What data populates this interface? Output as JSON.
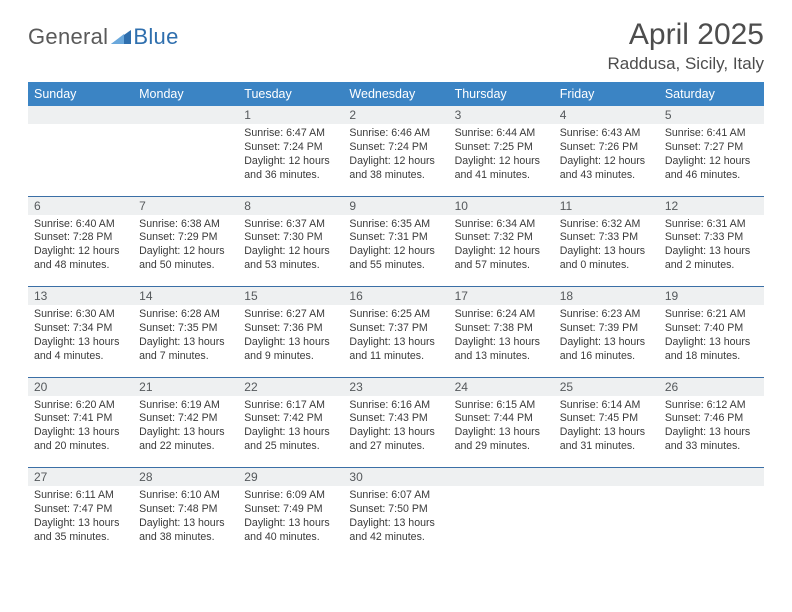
{
  "brand": {
    "word1": "General",
    "word2": "Blue",
    "word1_color": "#6b6b6b",
    "word2_color": "#2f6fae",
    "tri_color": "#2f6fae"
  },
  "title": "April 2025",
  "location": "Raddusa, Sicily, Italy",
  "colors": {
    "header_bg": "#3b84c4",
    "header_text": "#ffffff",
    "rule": "#3b6fa6",
    "daynum_bg": "#eef0f1",
    "daynum_text": "#55595c",
    "body_text": "#3a3a3a",
    "title_text": "#4d4d4d"
  },
  "typography": {
    "month_title_size": 30,
    "location_size": 17,
    "header_cell_size": 12.5,
    "daynum_size": 12,
    "cell_size": 10.6,
    "logo_size": 22
  },
  "weekdays": [
    "Sunday",
    "Monday",
    "Tuesday",
    "Wednesday",
    "Thursday",
    "Friday",
    "Saturday"
  ],
  "weeks": [
    [
      null,
      null,
      {
        "n": "1",
        "sr": "6:47 AM",
        "ss": "7:24 PM",
        "dl": "12 hours and 36 minutes."
      },
      {
        "n": "2",
        "sr": "6:46 AM",
        "ss": "7:24 PM",
        "dl": "12 hours and 38 minutes."
      },
      {
        "n": "3",
        "sr": "6:44 AM",
        "ss": "7:25 PM",
        "dl": "12 hours and 41 minutes."
      },
      {
        "n": "4",
        "sr": "6:43 AM",
        "ss": "7:26 PM",
        "dl": "12 hours and 43 minutes."
      },
      {
        "n": "5",
        "sr": "6:41 AM",
        "ss": "7:27 PM",
        "dl": "12 hours and 46 minutes."
      }
    ],
    [
      {
        "n": "6",
        "sr": "6:40 AM",
        "ss": "7:28 PM",
        "dl": "12 hours and 48 minutes."
      },
      {
        "n": "7",
        "sr": "6:38 AM",
        "ss": "7:29 PM",
        "dl": "12 hours and 50 minutes."
      },
      {
        "n": "8",
        "sr": "6:37 AM",
        "ss": "7:30 PM",
        "dl": "12 hours and 53 minutes."
      },
      {
        "n": "9",
        "sr": "6:35 AM",
        "ss": "7:31 PM",
        "dl": "12 hours and 55 minutes."
      },
      {
        "n": "10",
        "sr": "6:34 AM",
        "ss": "7:32 PM",
        "dl": "12 hours and 57 minutes."
      },
      {
        "n": "11",
        "sr": "6:32 AM",
        "ss": "7:33 PM",
        "dl": "13 hours and 0 minutes."
      },
      {
        "n": "12",
        "sr": "6:31 AM",
        "ss": "7:33 PM",
        "dl": "13 hours and 2 minutes."
      }
    ],
    [
      {
        "n": "13",
        "sr": "6:30 AM",
        "ss": "7:34 PM",
        "dl": "13 hours and 4 minutes."
      },
      {
        "n": "14",
        "sr": "6:28 AM",
        "ss": "7:35 PM",
        "dl": "13 hours and 7 minutes."
      },
      {
        "n": "15",
        "sr": "6:27 AM",
        "ss": "7:36 PM",
        "dl": "13 hours and 9 minutes."
      },
      {
        "n": "16",
        "sr": "6:25 AM",
        "ss": "7:37 PM",
        "dl": "13 hours and 11 minutes."
      },
      {
        "n": "17",
        "sr": "6:24 AM",
        "ss": "7:38 PM",
        "dl": "13 hours and 13 minutes."
      },
      {
        "n": "18",
        "sr": "6:23 AM",
        "ss": "7:39 PM",
        "dl": "13 hours and 16 minutes."
      },
      {
        "n": "19",
        "sr": "6:21 AM",
        "ss": "7:40 PM",
        "dl": "13 hours and 18 minutes."
      }
    ],
    [
      {
        "n": "20",
        "sr": "6:20 AM",
        "ss": "7:41 PM",
        "dl": "13 hours and 20 minutes."
      },
      {
        "n": "21",
        "sr": "6:19 AM",
        "ss": "7:42 PM",
        "dl": "13 hours and 22 minutes."
      },
      {
        "n": "22",
        "sr": "6:17 AM",
        "ss": "7:42 PM",
        "dl": "13 hours and 25 minutes."
      },
      {
        "n": "23",
        "sr": "6:16 AM",
        "ss": "7:43 PM",
        "dl": "13 hours and 27 minutes."
      },
      {
        "n": "24",
        "sr": "6:15 AM",
        "ss": "7:44 PM",
        "dl": "13 hours and 29 minutes."
      },
      {
        "n": "25",
        "sr": "6:14 AM",
        "ss": "7:45 PM",
        "dl": "13 hours and 31 minutes."
      },
      {
        "n": "26",
        "sr": "6:12 AM",
        "ss": "7:46 PM",
        "dl": "13 hours and 33 minutes."
      }
    ],
    [
      {
        "n": "27",
        "sr": "6:11 AM",
        "ss": "7:47 PM",
        "dl": "13 hours and 35 minutes."
      },
      {
        "n": "28",
        "sr": "6:10 AM",
        "ss": "7:48 PM",
        "dl": "13 hours and 38 minutes."
      },
      {
        "n": "29",
        "sr": "6:09 AM",
        "ss": "7:49 PM",
        "dl": "13 hours and 40 minutes."
      },
      {
        "n": "30",
        "sr": "6:07 AM",
        "ss": "7:50 PM",
        "dl": "13 hours and 42 minutes."
      },
      null,
      null,
      null
    ]
  ],
  "labels": {
    "sunrise": "Sunrise:",
    "sunset": "Sunset:",
    "daylight": "Daylight:"
  }
}
